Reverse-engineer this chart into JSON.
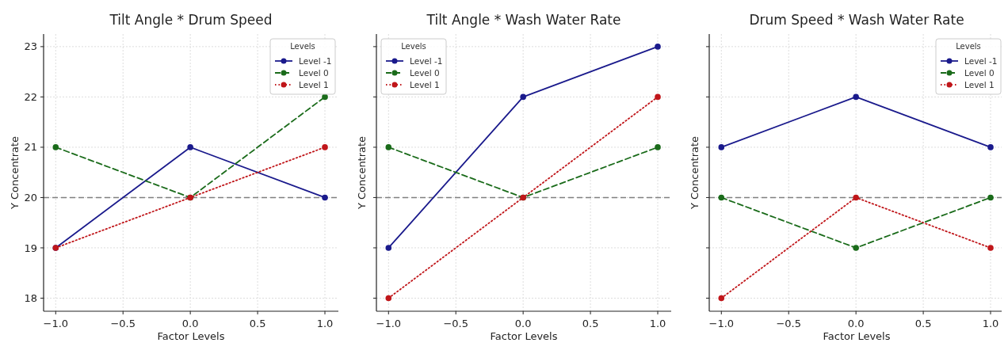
{
  "chart_data": [
    {
      "type": "line",
      "title": "Tilt Angle * Drum Speed",
      "xlabel": "Factor Levels",
      "ylabel": "Y Concentrate",
      "legend_title": "Levels",
      "legend": "top right",
      "grid": true,
      "marker": "circle",
      "x": [
        -1,
        0,
        1
      ],
      "xlim": [
        -1.09,
        1.1
      ],
      "xticks": [
        {
          "value": -1,
          "label": "−1.0"
        },
        {
          "value": -0.5,
          "label": "−0.5"
        },
        {
          "value": 0,
          "label": "0.0"
        },
        {
          "value": 0.5,
          "label": "0.5"
        },
        {
          "value": 1,
          "label": "1.0"
        }
      ],
      "ylim": [
        17.74,
        23.25
      ],
      "yticks": [
        18,
        19,
        20,
        21,
        22,
        23
      ],
      "series": [
        {
          "name": "Level -1",
          "color": "#1a1a8c",
          "line_style": "solid",
          "values": [
            19,
            21,
            20
          ]
        },
        {
          "name": "Level 0",
          "color": "#1a6b1a",
          "line_style": "dashed",
          "values": [
            21,
            20,
            22
          ]
        },
        {
          "name": "Level 1",
          "color": "#c0161a",
          "line_style": "dotted",
          "values": [
            19,
            20,
            21
          ]
        }
      ],
      "ref_lines": [
        {
          "axis": "y",
          "value": 20,
          "color": "#808080",
          "line_style": "dashed"
        }
      ]
    },
    {
      "type": "line",
      "title": "Tilt Angle * Wash Water Rate",
      "xlabel": "Factor Levels",
      "ylabel": "Y Concentrate",
      "legend_title": "Levels",
      "legend": "top left",
      "grid": true,
      "marker": "circle",
      "tick_labels": "x",
      "x": [
        -1,
        0,
        1
      ],
      "xlim": [
        -1.09,
        1.1
      ],
      "xticks": [
        {
          "value": -1,
          "label": "−1.0"
        },
        {
          "value": -0.5,
          "label": "−0.5"
        },
        {
          "value": 0,
          "label": "0.0"
        },
        {
          "value": 0.5,
          "label": "0.5"
        },
        {
          "value": 1,
          "label": "1.0"
        }
      ],
      "ylim": [
        17.74,
        23.25
      ],
      "yticks": [
        18,
        19,
        20,
        21,
        22,
        23
      ],
      "series": [
        {
          "name": "Level -1",
          "color": "#1a1a8c",
          "line_style": "solid",
          "values": [
            19,
            22,
            23
          ]
        },
        {
          "name": "Level 0",
          "color": "#1a6b1a",
          "line_style": "dashed",
          "values": [
            21,
            20,
            21
          ]
        },
        {
          "name": "Level 1",
          "color": "#c0161a",
          "line_style": "dotted",
          "values": [
            18,
            20,
            22
          ]
        }
      ],
      "ref_lines": [
        {
          "axis": "y",
          "value": 20,
          "color": "#808080",
          "line_style": "dashed"
        }
      ]
    },
    {
      "type": "line",
      "title": "Drum Speed * Wash Water Rate",
      "xlabel": "Factor Levels",
      "ylabel": "Y Concentrate",
      "legend_title": "Levels",
      "legend": "top right",
      "grid": true,
      "marker": "circle",
      "tick_labels": "x",
      "x": [
        -1,
        0,
        1
      ],
      "xlim": [
        -1.09,
        1.1
      ],
      "xticks": [
        {
          "value": -1,
          "label": "−1.0"
        },
        {
          "value": -0.5,
          "label": "−0.5"
        },
        {
          "value": 0,
          "label": "0.0"
        },
        {
          "value": 0.5,
          "label": "0.5"
        },
        {
          "value": 1,
          "label": "1.0"
        }
      ],
      "ylim": [
        17.74,
        23.25
      ],
      "yticks": [
        18,
        19,
        20,
        21,
        22,
        23
      ],
      "series": [
        {
          "name": "Level -1",
          "color": "#1a1a8c",
          "line_style": "solid",
          "values": [
            21,
            22,
            21
          ]
        },
        {
          "name": "Level 0",
          "color": "#1a6b1a",
          "line_style": "dashed",
          "values": [
            20,
            19,
            20
          ]
        },
        {
          "name": "Level 1",
          "color": "#c0161a",
          "line_style": "dotted",
          "values": [
            18,
            20,
            19
          ]
        }
      ],
      "ref_lines": [
        {
          "axis": "y",
          "value": 20,
          "color": "#808080",
          "line_style": "dashed"
        }
      ]
    }
  ]
}
